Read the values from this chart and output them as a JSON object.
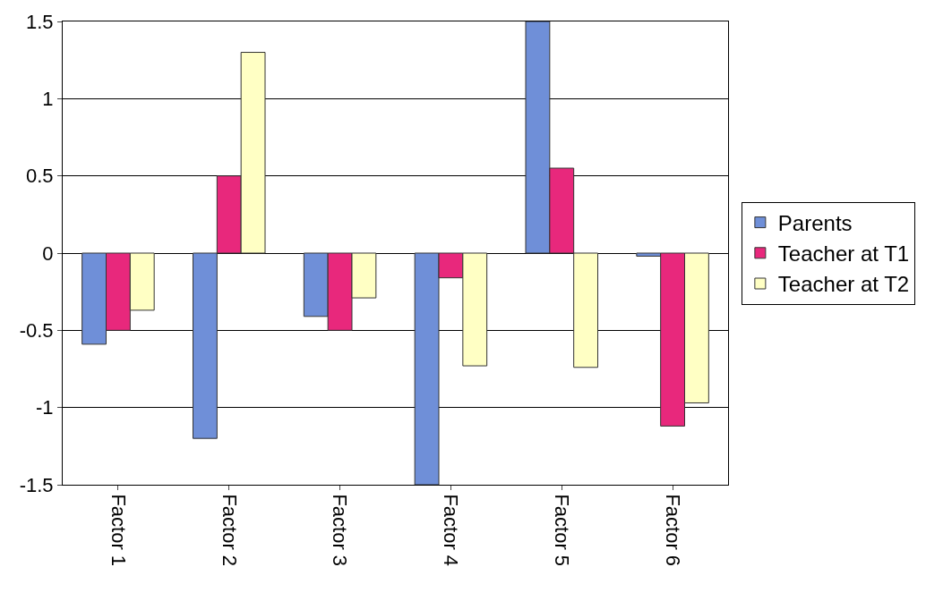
{
  "chart_data": {
    "type": "bar",
    "categories": [
      "Factor 1",
      "Factor 2",
      "Factor 3",
      "Factor 4",
      "Factor 5",
      "Factor 6"
    ],
    "series": [
      {
        "name": "Parents",
        "color": "#6f8fd8",
        "values": [
          -0.59,
          -1.2,
          -0.41,
          -1.5,
          1.5,
          -0.02
        ]
      },
      {
        "name": "Teacher at T1",
        "color": "#e8287c",
        "values": [
          -0.5,
          0.5,
          -0.5,
          -0.16,
          0.55,
          -1.12
        ]
      },
      {
        "name": "Teacher at T2",
        "color": "#ffffc4",
        "values": [
          -0.37,
          1.3,
          -0.29,
          -0.73,
          -0.74,
          -0.97
        ]
      }
    ],
    "ylim": [
      -1.5,
      1.5
    ],
    "yticks": [
      -1.5,
      -1,
      -0.5,
      0,
      0.5,
      1,
      1.5
    ],
    "grid": "y",
    "legend": "right"
  }
}
